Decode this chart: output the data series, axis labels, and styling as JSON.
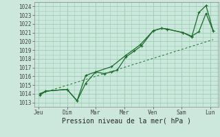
{
  "xlabel": "Pression niveau de la mer( hPa )",
  "bg_color": "#cce8dc",
  "grid_color": "#99ccb3",
  "line_color": "#1a6b2a",
  "ylim": [
    1012.5,
    1024.5
  ],
  "yticks": [
    1013,
    1014,
    1015,
    1016,
    1017,
    1018,
    1019,
    1020,
    1021,
    1022,
    1023,
    1024
  ],
  "x_labels": [
    "Jeu",
    "Dim",
    "Mar",
    "Mer",
    "Ven",
    "Sam",
    "Lun"
  ],
  "x_positions": [
    0,
    1,
    2,
    3,
    4,
    5,
    6
  ],
  "xlim": [
    -0.15,
    6.3
  ],
  "line1_x": [
    0.05,
    0.25,
    1.0,
    1.35,
    1.65,
    2.0,
    2.3,
    2.55,
    2.75,
    3.05,
    3.35,
    3.6,
    4.0,
    4.3,
    4.5,
    5.05,
    5.35,
    5.6,
    5.85,
    6.1
  ],
  "line1_y": [
    1014.0,
    1014.3,
    1014.5,
    1013.2,
    1016.1,
    1016.5,
    1016.3,
    1016.5,
    1016.7,
    1018.2,
    1018.9,
    1019.5,
    1021.2,
    1021.5,
    1021.4,
    1021.0,
    1020.6,
    1021.1,
    1023.2,
    1021.2
  ],
  "line2_x": [
    0.05,
    0.25,
    1.0,
    1.35,
    1.65,
    2.0,
    2.55,
    3.05,
    3.55,
    4.0,
    4.3,
    4.5,
    5.05,
    5.35,
    5.6,
    5.85,
    6.1
  ],
  "line2_y": [
    1013.8,
    1014.3,
    1014.5,
    1013.2,
    1015.2,
    1016.5,
    1017.1,
    1018.4,
    1019.6,
    1021.2,
    1021.5,
    1021.4,
    1021.0,
    1020.5,
    1023.3,
    1024.1,
    1021.2
  ],
  "line3_x": [
    0.05,
    6.1
  ],
  "line3_y": [
    1014.0,
    1020.2
  ]
}
